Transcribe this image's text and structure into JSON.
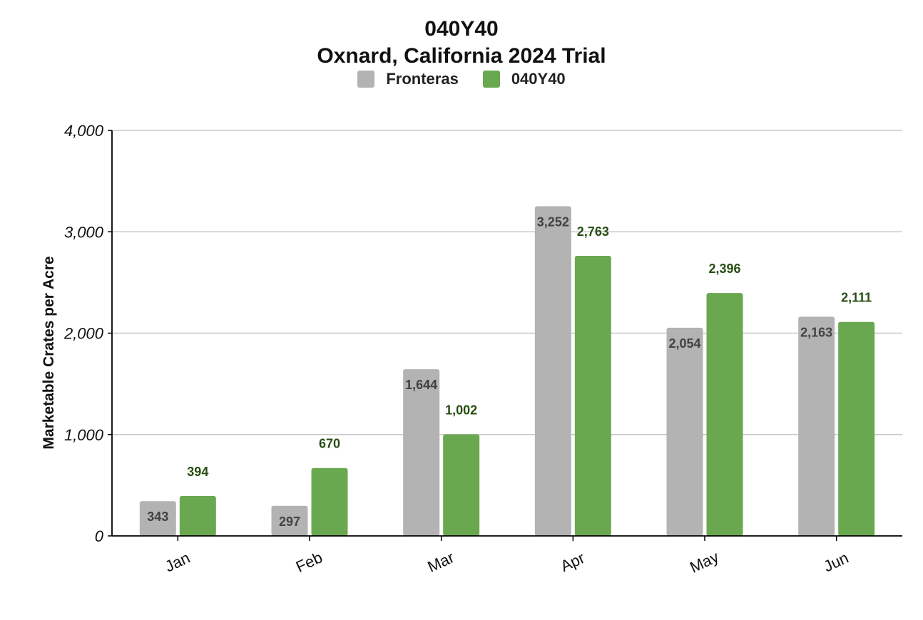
{
  "colors": {
    "series_1": "#b3b3b3",
    "series_2": "#6aa84f",
    "label_1": "#424242",
    "label_2": "#274e13",
    "grid": "#c8c8c8",
    "axis": "#000000"
  },
  "chart_data": {
    "type": "bar",
    "title": "040Y40",
    "subtitle": "Oxnard, California 2024 Trial",
    "xlabel": "",
    "ylabel": "Marketable Crates per Acre",
    "categories": [
      "Jan",
      "Feb",
      "Mar",
      "Apr",
      "May",
      "Jun"
    ],
    "series": [
      {
        "name": "Fronteras",
        "values": [
          343,
          297,
          1644,
          3252,
          2054,
          2163
        ],
        "labels": [
          "343",
          "297",
          "1,644",
          "3,252",
          "2,054",
          "2,163"
        ]
      },
      {
        "name": "040Y40",
        "values": [
          394,
          670,
          1002,
          2763,
          2396,
          2111
        ],
        "labels": [
          "394",
          "670",
          "1,002",
          "2,763",
          "2,396",
          "2,111"
        ]
      }
    ],
    "ylim": [
      0,
      4000
    ],
    "yticks": [
      0,
      1000,
      2000,
      3000,
      4000
    ],
    "ytick_labels": [
      "0",
      "1,000",
      "2,000",
      "3,000",
      "4,000"
    ],
    "grid": true,
    "legend_position": "top-center"
  }
}
